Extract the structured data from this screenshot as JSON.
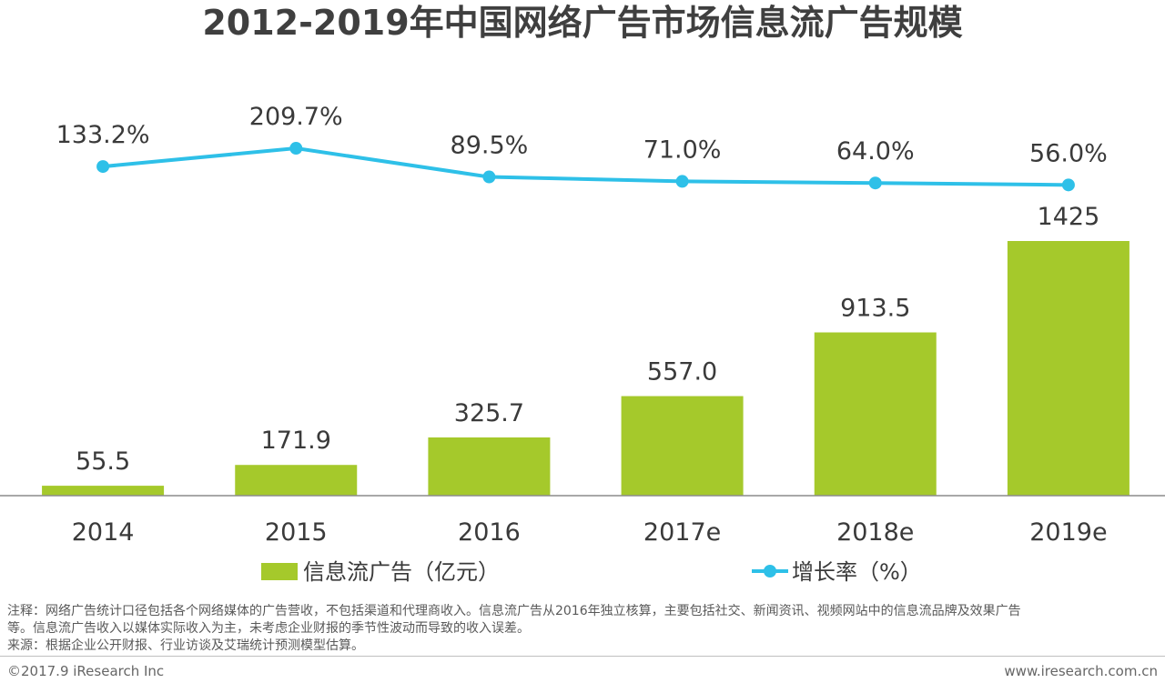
{
  "chart_data": {
    "type": "bar",
    "title": "2012-2019年中国网络广告市场信息流广告规模",
    "categories": [
      "2014",
      "2015",
      "2016",
      "2017e",
      "2018e",
      "2019e"
    ],
    "series": [
      {
        "name": "信息流广告（亿元）",
        "type": "bar",
        "values": [
          55.5,
          171.9,
          325.7,
          557.0,
          913.5,
          1425
        ],
        "labels": [
          "55.5",
          "171.9",
          "325.7",
          "557.0",
          "913.5",
          "1425"
        ],
        "color": "#a5c92b"
      },
      {
        "name": "增长率（%）",
        "type": "line",
        "values": [
          133.2,
          209.7,
          89.5,
          71.0,
          64.0,
          56.0
        ],
        "labels": [
          "133.2%",
          "209.7%",
          "89.5%",
          "71.0%",
          "64.0%",
          "56.0%"
        ],
        "color": "#2ec0e8"
      }
    ],
    "ylim": [
      0,
      1600
    ],
    "y2lim": [
      0,
      250
    ],
    "legend_position": "bottom"
  },
  "notes": {
    "line1": "注释：网络广告统计口径包括各个网络媒体的广告营收，不包括渠道和代理商收入。信息流广告从2016年独立核算，主要包括社交、新闻资讯、视频网站中的信息流品牌及效果广告",
    "line2": "等。信息流广告收入以媒体实际收入为主，未考虑企业财报的季节性波动而导致的收入误差。",
    "source": "来源：根据企业公开财报、行业访谈及艾瑞统计预测模型估算。"
  },
  "footer": {
    "copyright": "©2017.9 iResearch Inc",
    "website": "www.iresearch.com.cn"
  }
}
